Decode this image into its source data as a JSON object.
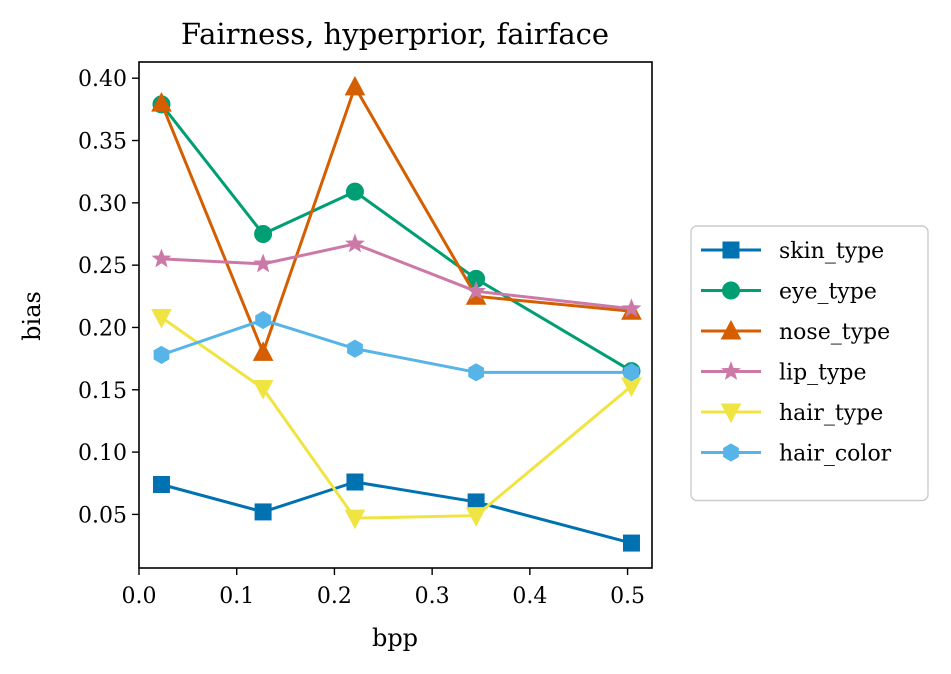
{
  "chart_data": {
    "type": "line",
    "title": "Fairness, hyperprior, fairface",
    "xlabel": "bpp",
    "ylabel": "bias",
    "xlim": [
      0.0,
      0.525
    ],
    "ylim": [
      0.007,
      0.413
    ],
    "xticks": [
      0.0,
      0.1,
      0.2,
      0.3,
      0.4,
      0.5
    ],
    "xtick_labels": [
      "0.0",
      "0.1",
      "0.2",
      "0.3",
      "0.4",
      "0.5"
    ],
    "yticks": [
      0.05,
      0.1,
      0.15,
      0.2,
      0.25,
      0.3,
      0.35,
      0.4
    ],
    "ytick_labels": [
      "0.05",
      "0.10",
      "0.15",
      "0.20",
      "0.25",
      "0.30",
      "0.35",
      "0.40"
    ],
    "legend_position": "outside-right",
    "grid": false,
    "x": [
      0.023,
      0.127,
      0.221,
      0.345,
      0.504
    ],
    "series": [
      {
        "name": "skin_type",
        "color": "#0072b2",
        "marker": "square",
        "values": [
          0.074,
          0.052,
          0.076,
          0.06,
          0.027
        ]
      },
      {
        "name": "eye_type",
        "color": "#009e73",
        "marker": "circle",
        "values": [
          0.379,
          0.275,
          0.309,
          0.239,
          0.165
        ]
      },
      {
        "name": "nose_type",
        "color": "#d55e00",
        "marker": "triangle-up",
        "values": [
          0.38,
          0.18,
          0.393,
          0.225,
          0.213
        ]
      },
      {
        "name": "lip_type",
        "color": "#cc79a7",
        "marker": "star",
        "values": [
          0.255,
          0.251,
          0.267,
          0.229,
          0.215
        ]
      },
      {
        "name": "hair_type",
        "color": "#f0e442",
        "marker": "triangle-down",
        "values": [
          0.208,
          0.151,
          0.047,
          0.049,
          0.153
        ]
      },
      {
        "name": "hair_color",
        "color": "#56b4e9",
        "marker": "hexagon",
        "values": [
          0.178,
          0.206,
          0.183,
          0.164,
          0.164
        ]
      }
    ]
  }
}
